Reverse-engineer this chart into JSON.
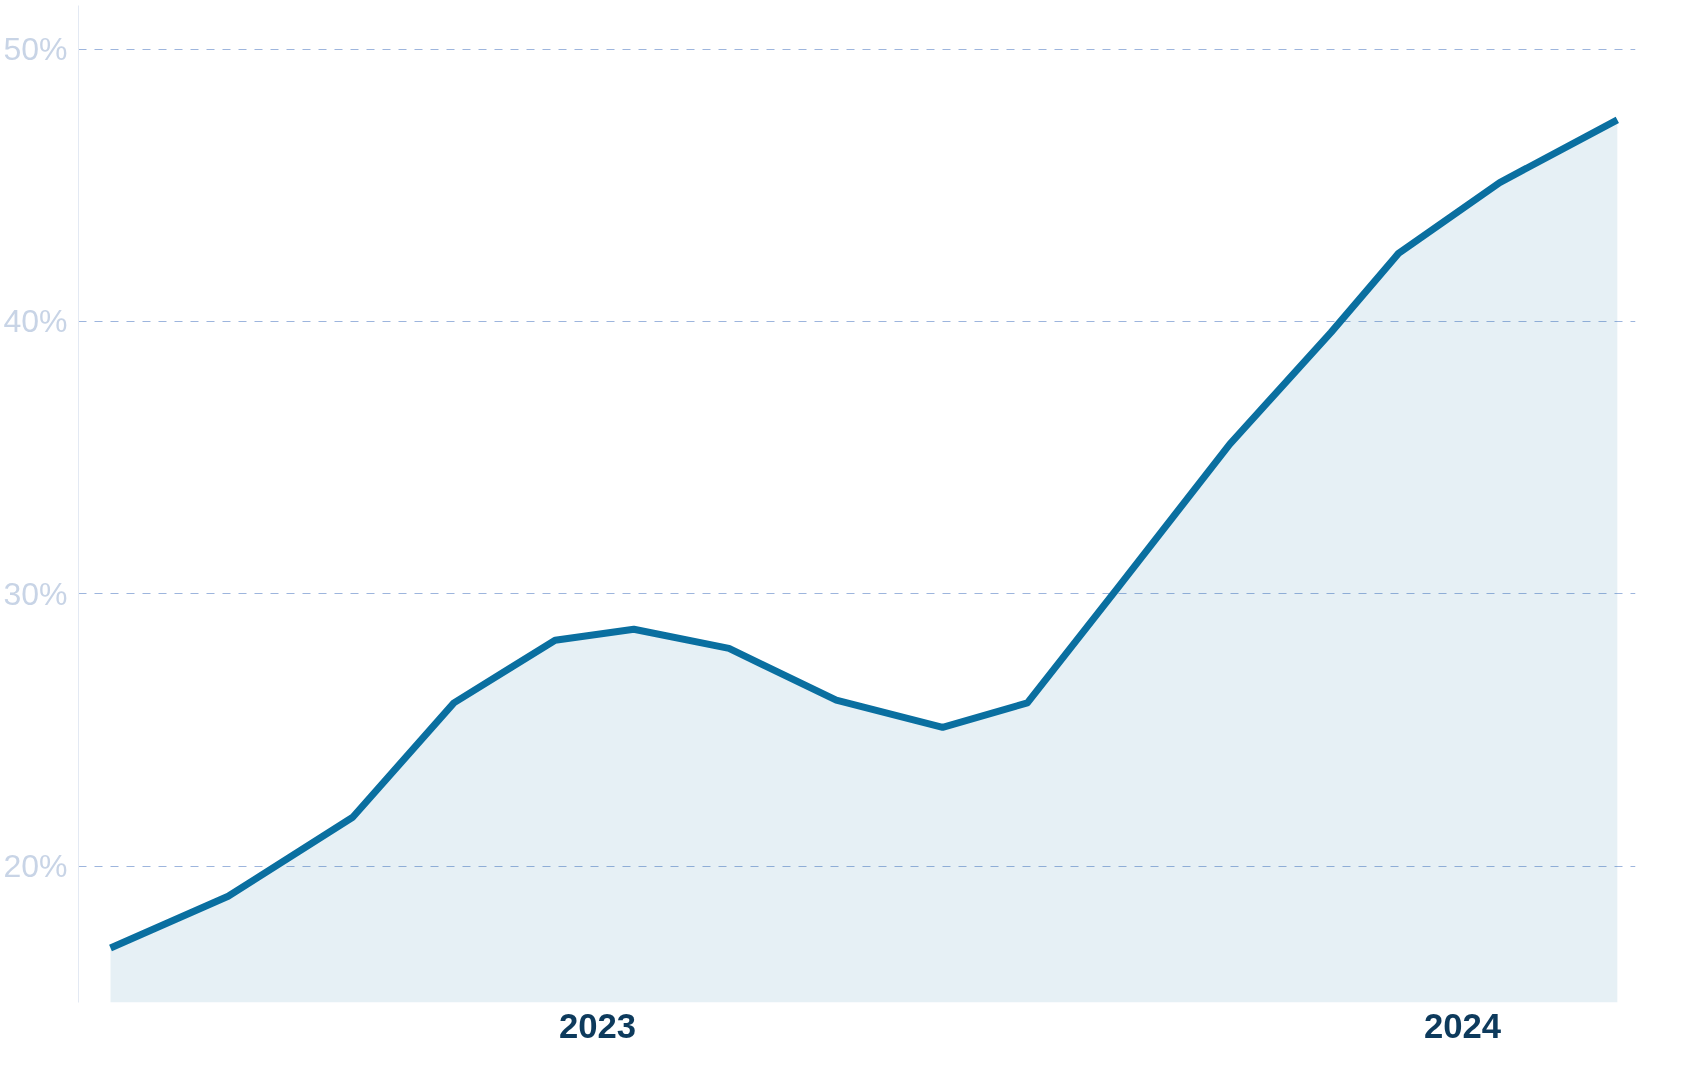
{
  "chart_data": {
    "type": "area",
    "color": "#0a6fa0",
    "x": [
      2022.437,
      2022.573,
      2022.717,
      2022.834,
      2022.951,
      2023.042,
      2023.152,
      2023.276,
      2023.399,
      2023.497,
      2023.601,
      2023.731,
      2023.848,
      2023.926,
      2024.043,
      2024.179
    ],
    "values": [
      17.0,
      18.9,
      21.8,
      26.0,
      28.3,
      28.7,
      28.0,
      26.1,
      25.1,
      26.0,
      30.2,
      35.5,
      39.6,
      42.5,
      45.1,
      47.4
    ],
    "xlim": [
      2022.4,
      2024.2
    ],
    "xticks": [
      2023,
      2024
    ],
    "ylim": [
      15,
      51.6
    ],
    "yticks": [
      {
        "value": 20,
        "label": "20%"
      },
      {
        "value": 30,
        "label": "30%"
      },
      {
        "value": 40,
        "label": "40%"
      },
      {
        "value": 50,
        "label": "50%"
      }
    ],
    "grid": "y",
    "line_style": "solid"
  }
}
